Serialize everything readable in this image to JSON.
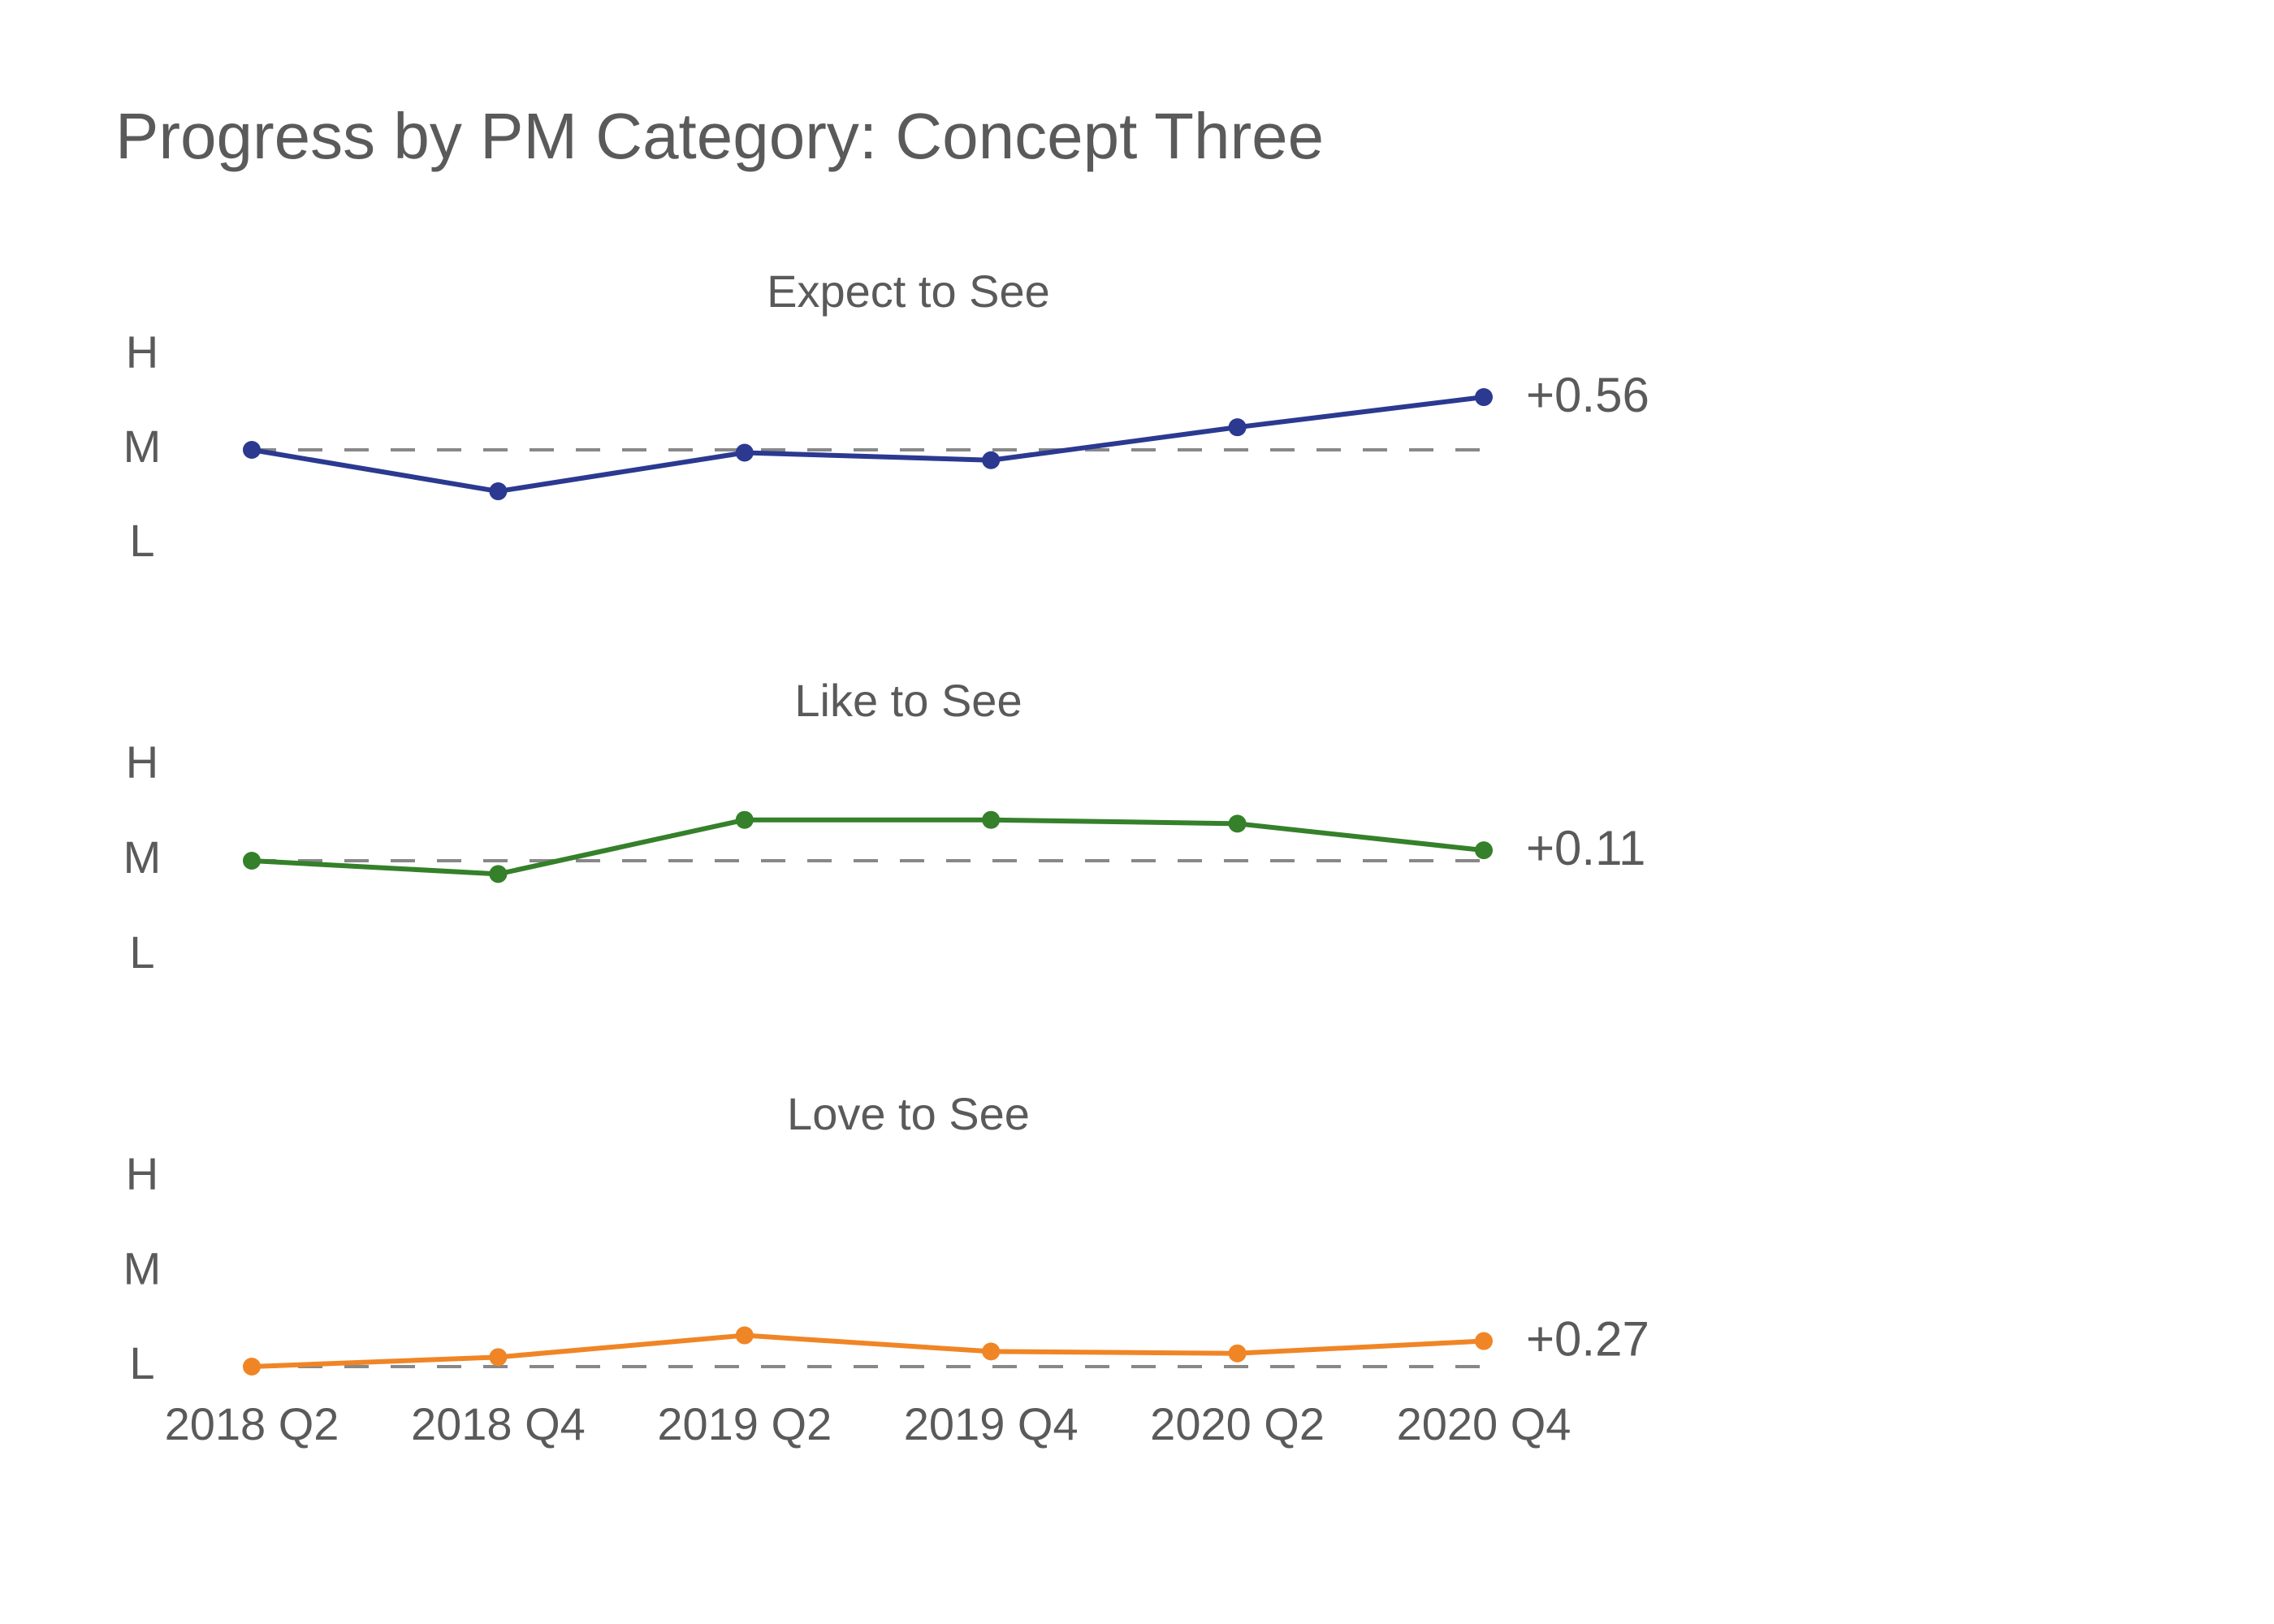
{
  "chart_data": {
    "type": "line",
    "title": "Progress by PM Category: Concept Three",
    "x": [
      "2018 Q2",
      "2018 Q4",
      "2019 Q2",
      "2019 Q4",
      "2020 Q2",
      "2020 Q4"
    ],
    "y_tick_labels": [
      "L",
      "M",
      "H"
    ],
    "y_tick_values": [
      1,
      2,
      3
    ],
    "ylim": [
      1,
      3
    ],
    "grid": false,
    "legend": "none",
    "reference_line": {
      "style": "dashed",
      "color": "#888888",
      "description": "baseline at first-period value"
    },
    "panels": [
      {
        "name": "Expect to See",
        "color": "#2b3990",
        "values": [
          2.0,
          1.56,
          1.97,
          1.89,
          2.24,
          2.56
        ],
        "end_label": "+0.56"
      },
      {
        "name": "Like to See",
        "color": "#35802a",
        "values": [
          2.0,
          1.86,
          2.43,
          2.43,
          2.39,
          2.11
        ],
        "end_label": "+0.11"
      },
      {
        "name": "Love to See",
        "color": "#f08526",
        "values": [
          1.0,
          1.1,
          1.33,
          1.16,
          1.14,
          1.27
        ],
        "end_label": "+0.27"
      }
    ]
  }
}
